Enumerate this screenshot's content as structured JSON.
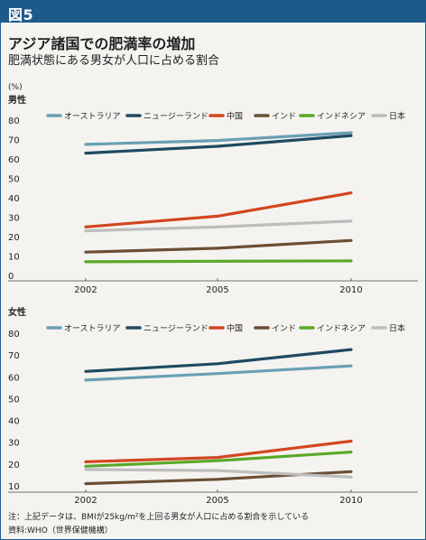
{
  "figure_label": "図5",
  "title": "アジア諸国での肥満率の増加",
  "subtitle": "肥満状態にある男女が人口に占める割合",
  "unit_label": "(%)",
  "note": "注：上記データは、BMIが25kg/m²を上回る男女が人口に占める割合を示している",
  "source": "資料:WHO（世界保健機構）",
  "colors": {
    "header": "#1d5a8c",
    "オーストラリア": "#6a9fb5",
    "ニュージーランド": "#1e4a62",
    "中国": "#d2461f",
    "インド": "#6b4e34",
    "インドネシア": "#5aa829",
    "日本": "#bdbdbd"
  },
  "chart_data": [
    {
      "type": "line",
      "panel_label": "男性",
      "x": [
        "2002",
        "2005",
        "2010"
      ],
      "ylim": [
        0,
        80
      ],
      "y_ticks": [
        "0",
        "10",
        "20",
        "30",
        "40",
        "50",
        "60",
        "70",
        "80"
      ],
      "legend_position": "top",
      "series": [
        {
          "name": "オーストラリア",
          "values": [
            67.5,
            69.5,
            73.5
          ]
        },
        {
          "name": "ニュージーランド",
          "values": [
            63,
            66.5,
            72
          ]
        },
        {
          "name": "中国",
          "values": [
            25,
            30.5,
            42.5
          ]
        },
        {
          "name": "インド",
          "values": [
            12,
            14,
            18
          ]
        },
        {
          "name": "インドネシア",
          "values": [
            7,
            7.3,
            7.5
          ]
        },
        {
          "name": "日本",
          "values": [
            23,
            25,
            28
          ]
        }
      ]
    },
    {
      "type": "line",
      "panel_label": "女性",
      "x": [
        "2002",
        "2005",
        "2010"
      ],
      "ylim": [
        10,
        80
      ],
      "y_ticks": [
        "10",
        "20",
        "30",
        "40",
        "50",
        "60",
        "70",
        "80"
      ],
      "legend_position": "top",
      "series": [
        {
          "name": "オーストラリア",
          "values": [
            58.5,
            61.5,
            65
          ]
        },
        {
          "name": "ニュージーランド",
          "values": [
            62.5,
            66,
            72.5
          ]
        },
        {
          "name": "中国",
          "values": [
            21,
            23,
            30.5
          ]
        },
        {
          "name": "インド",
          "values": [
            11,
            13,
            16.5
          ]
        },
        {
          "name": "インドネシア",
          "values": [
            19,
            21.5,
            25.5
          ]
        },
        {
          "name": "日本",
          "values": [
            17.5,
            17,
            14
          ]
        }
      ]
    }
  ]
}
